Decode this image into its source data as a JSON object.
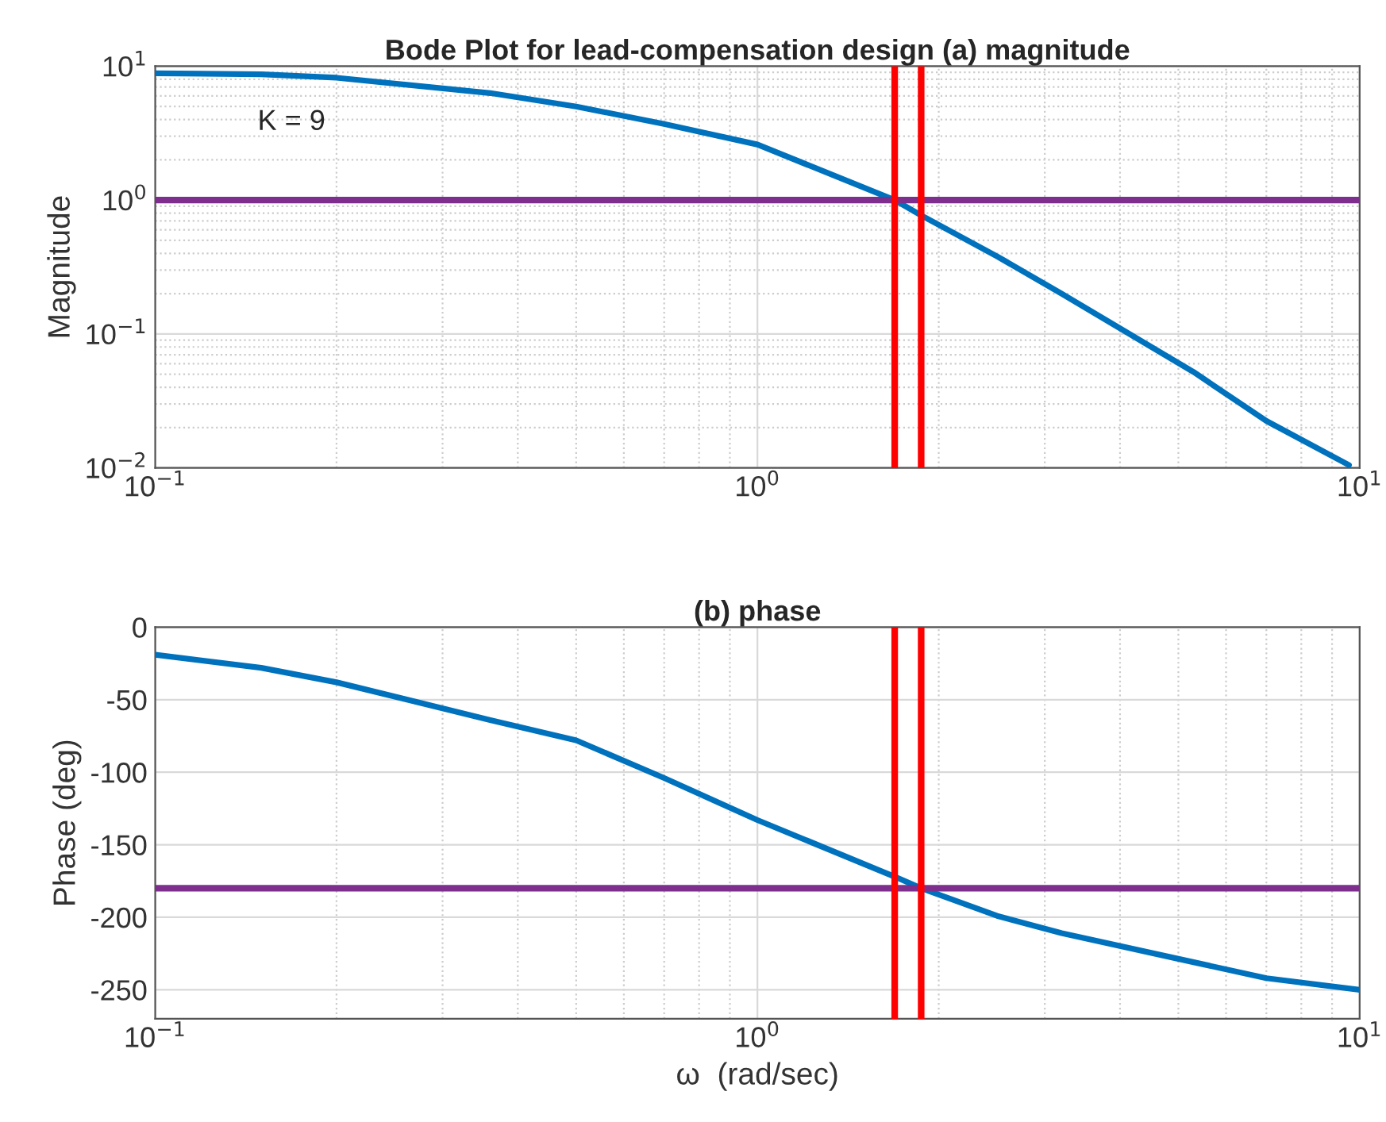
{
  "chart_data": [
    {
      "type": "line",
      "title": "Bode Plot for lead-compensation design (a) magnitude",
      "ylabel": "Magnitude",
      "log": "xy",
      "x": [
        0.1,
        0.15,
        0.2,
        0.36,
        0.5,
        0.7,
        1,
        1.69,
        1.87,
        2.5,
        3.2,
        5.3,
        7,
        9.6
      ],
      "series": [
        {
          "color": "#0072bd",
          "values": [
            8.85,
            8.7,
            8.2,
            6.3,
            5.0,
            3.7,
            2.6,
            1.0,
            0.77,
            0.38,
            0.2,
            0.052,
            0.0224,
            0.0105
          ]
        }
      ],
      "xlim": [
        0.1,
        10
      ],
      "xticks": [
        {
          "value": 0.1,
          "label": "10$^{−1}$"
        },
        {
          "value": 1,
          "label": "10$^{0}$"
        },
        {
          "value": 10,
          "label": "10$^{1}$"
        }
      ],
      "ylim": [
        0.01,
        10
      ],
      "yticks": [
        {
          "value": 0.01,
          "label": "10$^{−2}$"
        },
        {
          "value": 0.1,
          "label": "10$^{−1}$"
        },
        {
          "value": 1,
          "label": "10$^{0}$"
        },
        {
          "value": 10,
          "label": "10$^{1}$"
        }
      ],
      "ref_lines": [
        {
          "axis": "y",
          "value": 1,
          "color": "#7e2f8e"
        },
        {
          "axis": "x",
          "value": 1.69,
          "color": "#ff0000"
        },
        {
          "axis": "x",
          "value": 1.87,
          "color": "#ff0000"
        }
      ],
      "annotations": [
        "K = 9"
      ],
      "grid": true
    },
    {
      "type": "line",
      "title": "(b) phase",
      "xlabel": "ω  (rad/sec)",
      "ylabel": "Phase (deg)",
      "log": "x",
      "x": [
        0.1,
        0.15,
        0.2,
        0.36,
        0.5,
        0.7,
        1,
        1.69,
        1.87,
        2.5,
        3.2,
        5.3,
        7,
        10
      ],
      "series": [
        {
          "color": "#0072bd",
          "values": [
            -19,
            -28,
            -38,
            -64,
            -78,
            -104,
            -133,
            -172,
            -180,
            -199,
            -211,
            -231,
            -242,
            -250
          ]
        }
      ],
      "xlim": [
        0.1,
        10
      ],
      "xticks": [
        {
          "value": 0.1,
          "label": "10$^{−1}$"
        },
        {
          "value": 1,
          "label": "10$^{0}$"
        },
        {
          "value": 10,
          "label": "10$^{1}$"
        }
      ],
      "ylim": [
        -270,
        0
      ],
      "yticks": [
        -250,
        -200,
        -150,
        -100,
        -50,
        0
      ],
      "ref_lines": [
        {
          "axis": "y",
          "value": -180,
          "color": "#7e2f8e"
        },
        {
          "axis": "x",
          "value": 1.69,
          "color": "#ff0000"
        },
        {
          "axis": "x",
          "value": 1.87,
          "color": "#ff0000"
        }
      ],
      "grid": true
    }
  ]
}
